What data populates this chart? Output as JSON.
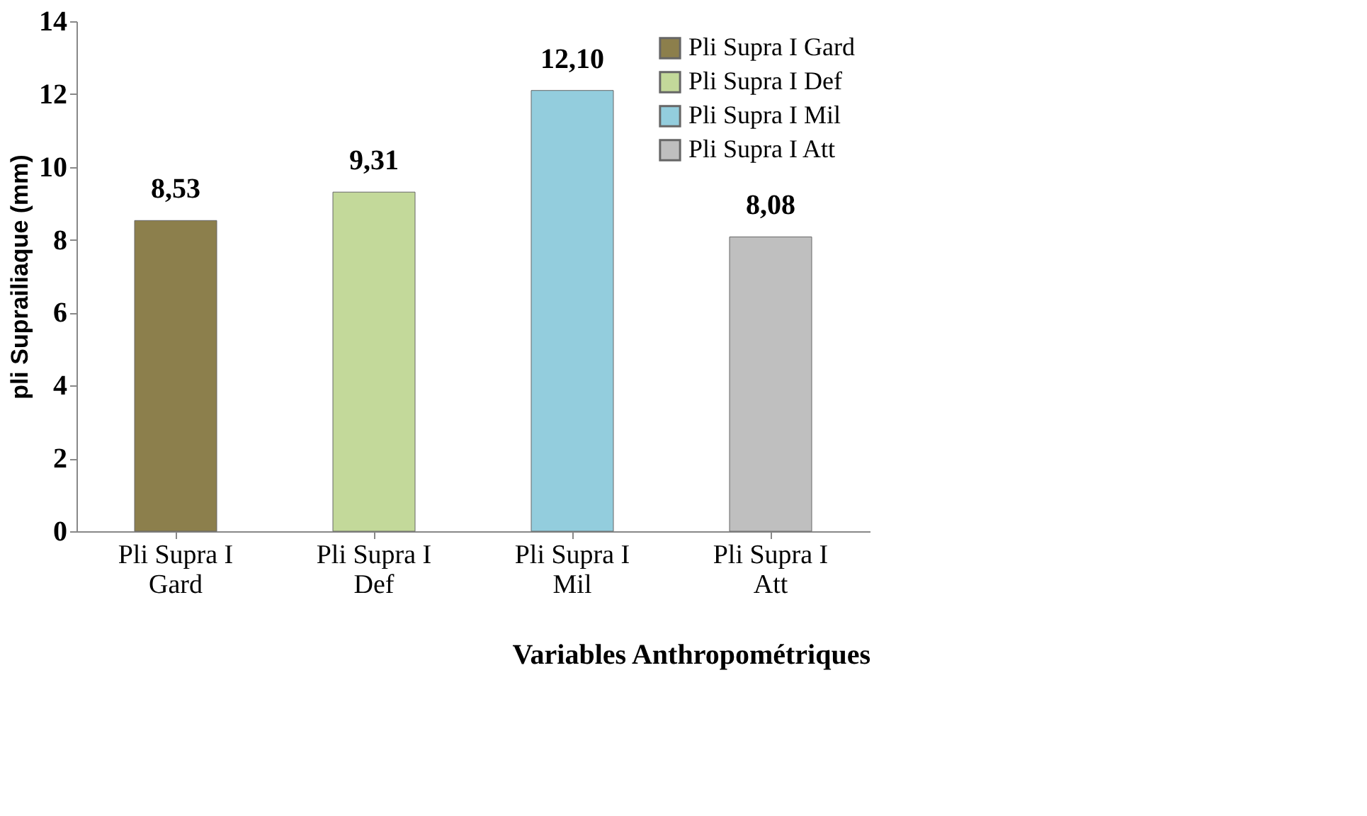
{
  "chart_data": {
    "type": "bar",
    "ylabel": "pli Suprailiaque (mm)",
    "xlabel": "Variables Anthropométriques",
    "categories": [
      "Pli Supra I Gard",
      "Pli Supra I Def",
      "Pli Supra I Mil",
      "Pli Supra I Att"
    ],
    "series": [
      {
        "name": "Pli Supra I Gard",
        "color": "#8c7f4c",
        "values": [
          8.53,
          null,
          null,
          null
        ],
        "value_labels": [
          "8,53",
          null,
          null,
          null
        ]
      },
      {
        "name": "Pli Supra I Def",
        "color": "#c3d99a",
        "values": [
          null,
          9.31,
          null,
          null
        ],
        "value_labels": [
          null,
          "9,31",
          null,
          null
        ]
      },
      {
        "name": "Pli Supra I Mil",
        "color": "#93cddd",
        "values": [
          null,
          null,
          12.1,
          null
        ],
        "value_labels": [
          null,
          null,
          "12,10",
          null
        ]
      },
      {
        "name": "Pli Supra I Att",
        "color": "#bfbfbf",
        "values": [
          null,
          null,
          null,
          8.08
        ],
        "value_labels": [
          null,
          null,
          null,
          "8,08"
        ]
      }
    ],
    "ylim": [
      0,
      14
    ],
    "yticks": [
      0,
      2,
      4,
      6,
      8,
      10,
      12,
      14
    ],
    "grid": false,
    "legend": "top right"
  }
}
